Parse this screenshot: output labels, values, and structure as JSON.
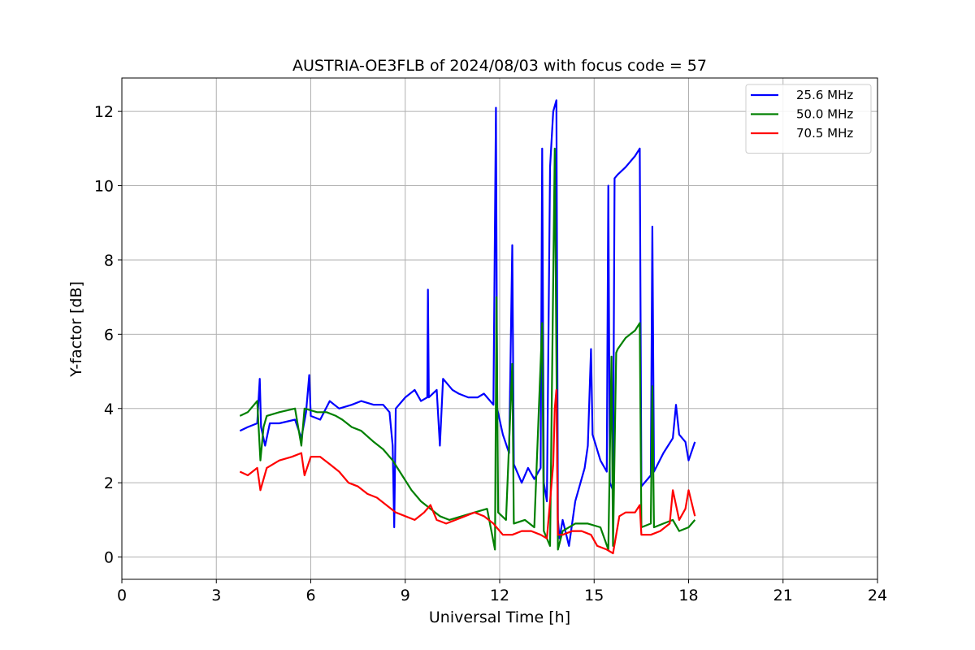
{
  "chart_data": {
    "type": "line",
    "title": "AUSTRIA-OE3FLB of 2024/08/03 with focus code = 57",
    "xlabel": "Universal Time [h]",
    "ylabel": "Y-factor [dB]",
    "xlim": [
      0,
      24
    ],
    "ylim": [
      -0.6,
      12.9
    ],
    "xticks": [
      0,
      3,
      6,
      9,
      12,
      15,
      18,
      21,
      24
    ],
    "yticks": [
      0,
      2,
      4,
      6,
      8,
      10,
      12
    ],
    "xtick_labels": [
      "0",
      "3",
      "6",
      "9",
      "12",
      "15",
      "18",
      "21",
      "24"
    ],
    "ytick_labels": [
      "0",
      "2",
      "4",
      "6",
      "8",
      "10",
      "12"
    ],
    "grid": true,
    "legend_position": "top-right",
    "series": [
      {
        "name": "25.6 MHz",
        "color": "#0000ff",
        "points": [
          [
            3.75,
            3.4
          ],
          [
            4.0,
            3.5
          ],
          [
            4.3,
            3.6
          ],
          [
            4.38,
            4.8
          ],
          [
            4.42,
            3.5
          ],
          [
            4.55,
            3.0
          ],
          [
            4.7,
            3.6
          ],
          [
            5.0,
            3.6
          ],
          [
            5.5,
            3.7
          ],
          [
            5.7,
            3.2
          ],
          [
            5.85,
            3.9
          ],
          [
            5.95,
            4.9
          ],
          [
            6.0,
            3.8
          ],
          [
            6.3,
            3.7
          ],
          [
            6.6,
            4.2
          ],
          [
            6.9,
            4.0
          ],
          [
            7.3,
            4.1
          ],
          [
            7.6,
            4.2
          ],
          [
            8.0,
            4.1
          ],
          [
            8.3,
            4.1
          ],
          [
            8.5,
            3.9
          ],
          [
            8.6,
            3.0
          ],
          [
            8.65,
            0.8
          ],
          [
            8.7,
            4.0
          ],
          [
            9.0,
            4.3
          ],
          [
            9.3,
            4.5
          ],
          [
            9.5,
            4.2
          ],
          [
            9.7,
            4.3
          ],
          [
            9.72,
            7.2
          ],
          [
            9.75,
            4.3
          ],
          [
            10.0,
            4.5
          ],
          [
            10.1,
            3.0
          ],
          [
            10.2,
            4.8
          ],
          [
            10.5,
            4.5
          ],
          [
            10.7,
            4.4
          ],
          [
            11.0,
            4.3
          ],
          [
            11.3,
            4.3
          ],
          [
            11.5,
            4.4
          ],
          [
            11.8,
            4.1
          ],
          [
            11.88,
            12.1
          ],
          [
            11.92,
            4.0
          ],
          [
            12.1,
            3.3
          ],
          [
            12.3,
            2.8
          ],
          [
            12.4,
            8.4
          ],
          [
            12.45,
            2.5
          ],
          [
            12.7,
            2.0
          ],
          [
            12.9,
            2.4
          ],
          [
            13.1,
            2.1
          ],
          [
            13.3,
            2.4
          ],
          [
            13.35,
            11.0
          ],
          [
            13.4,
            2.0
          ],
          [
            13.5,
            1.5
          ],
          [
            13.6,
            10.5
          ],
          [
            13.7,
            12.0
          ],
          [
            13.8,
            12.3
          ],
          [
            13.85,
            1.0
          ],
          [
            13.9,
            0.5
          ],
          [
            14.0,
            1.0
          ],
          [
            14.2,
            0.3
          ],
          [
            14.4,
            1.5
          ],
          [
            14.7,
            2.4
          ],
          [
            14.8,
            3.0
          ],
          [
            14.9,
            5.6
          ],
          [
            14.95,
            3.3
          ],
          [
            15.2,
            2.6
          ],
          [
            15.4,
            2.3
          ],
          [
            15.45,
            10.0
          ],
          [
            15.5,
            2.0
          ],
          [
            15.6,
            1.8
          ],
          [
            15.65,
            10.2
          ],
          [
            15.75,
            10.3
          ],
          [
            16.0,
            10.5
          ],
          [
            16.3,
            10.8
          ],
          [
            16.45,
            11.0
          ],
          [
            16.5,
            1.9
          ],
          [
            16.8,
            2.2
          ],
          [
            16.85,
            8.9
          ],
          [
            16.9,
            2.3
          ],
          [
            17.2,
            2.8
          ],
          [
            17.5,
            3.2
          ],
          [
            17.6,
            4.1
          ],
          [
            17.7,
            3.3
          ],
          [
            17.9,
            3.1
          ],
          [
            18.0,
            2.6
          ],
          [
            18.2,
            3.1
          ]
        ]
      },
      {
        "name": "50.0 MHz",
        "color": "#008000",
        "points": [
          [
            3.75,
            3.8
          ],
          [
            4.0,
            3.9
          ],
          [
            4.3,
            4.2
          ],
          [
            4.4,
            2.6
          ],
          [
            4.5,
            3.5
          ],
          [
            4.6,
            3.8
          ],
          [
            5.0,
            3.9
          ],
          [
            5.5,
            4.0
          ],
          [
            5.7,
            3.0
          ],
          [
            5.8,
            4.0
          ],
          [
            6.2,
            3.9
          ],
          [
            6.5,
            3.9
          ],
          [
            6.8,
            3.8
          ],
          [
            7.0,
            3.7
          ],
          [
            7.3,
            3.5
          ],
          [
            7.6,
            3.4
          ],
          [
            8.0,
            3.1
          ],
          [
            8.3,
            2.9
          ],
          [
            8.6,
            2.6
          ],
          [
            8.9,
            2.2
          ],
          [
            9.2,
            1.8
          ],
          [
            9.5,
            1.5
          ],
          [
            9.8,
            1.3
          ],
          [
            10.1,
            1.1
          ],
          [
            10.4,
            1.0
          ],
          [
            10.8,
            1.1
          ],
          [
            11.2,
            1.2
          ],
          [
            11.6,
            1.3
          ],
          [
            11.85,
            0.2
          ],
          [
            11.9,
            7.0
          ],
          [
            11.95,
            1.2
          ],
          [
            12.2,
            1.0
          ],
          [
            12.4,
            5.2
          ],
          [
            12.45,
            0.9
          ],
          [
            12.8,
            1.0
          ],
          [
            13.1,
            0.8
          ],
          [
            13.35,
            6.3
          ],
          [
            13.4,
            0.7
          ],
          [
            13.6,
            0.3
          ],
          [
            13.75,
            11.0
          ],
          [
            13.85,
            0.2
          ],
          [
            14.0,
            0.7
          ],
          [
            14.4,
            0.9
          ],
          [
            14.8,
            0.9
          ],
          [
            15.2,
            0.8
          ],
          [
            15.45,
            0.2
          ],
          [
            15.55,
            5.4
          ],
          [
            15.6,
            0.3
          ],
          [
            15.7,
            5.5
          ],
          [
            15.75,
            5.6
          ],
          [
            16.0,
            5.9
          ],
          [
            16.3,
            6.1
          ],
          [
            16.45,
            6.3
          ],
          [
            16.5,
            0.8
          ],
          [
            16.8,
            0.9
          ],
          [
            16.85,
            4.6
          ],
          [
            16.9,
            0.8
          ],
          [
            17.2,
            0.9
          ],
          [
            17.5,
            1.0
          ],
          [
            17.7,
            0.7
          ],
          [
            18.0,
            0.8
          ],
          [
            18.2,
            1.0
          ]
        ]
      },
      {
        "name": "70.5 MHz",
        "color": "#ff0000",
        "points": [
          [
            3.75,
            2.3
          ],
          [
            4.0,
            2.2
          ],
          [
            4.3,
            2.4
          ],
          [
            4.4,
            1.8
          ],
          [
            4.6,
            2.4
          ],
          [
            5.0,
            2.6
          ],
          [
            5.4,
            2.7
          ],
          [
            5.7,
            2.8
          ],
          [
            5.8,
            2.2
          ],
          [
            6.0,
            2.7
          ],
          [
            6.3,
            2.7
          ],
          [
            6.6,
            2.5
          ],
          [
            6.9,
            2.3
          ],
          [
            7.2,
            2.0
          ],
          [
            7.5,
            1.9
          ],
          [
            7.8,
            1.7
          ],
          [
            8.1,
            1.6
          ],
          [
            8.4,
            1.4
          ],
          [
            8.7,
            1.2
          ],
          [
            9.0,
            1.1
          ],
          [
            9.3,
            1.0
          ],
          [
            9.6,
            1.2
          ],
          [
            9.8,
            1.4
          ],
          [
            10.0,
            1.0
          ],
          [
            10.3,
            0.9
          ],
          [
            10.6,
            1.0
          ],
          [
            10.9,
            1.1
          ],
          [
            11.2,
            1.2
          ],
          [
            11.5,
            1.1
          ],
          [
            11.8,
            0.9
          ],
          [
            12.1,
            0.6
          ],
          [
            12.4,
            0.6
          ],
          [
            12.7,
            0.7
          ],
          [
            13.0,
            0.7
          ],
          [
            13.3,
            0.6
          ],
          [
            13.5,
            0.5
          ],
          [
            13.7,
            2.5
          ],
          [
            13.75,
            4.0
          ],
          [
            13.8,
            4.5
          ],
          [
            13.85,
            0.6
          ],
          [
            14.0,
            0.6
          ],
          [
            14.3,
            0.7
          ],
          [
            14.6,
            0.7
          ],
          [
            14.9,
            0.6
          ],
          [
            15.1,
            0.3
          ],
          [
            15.4,
            0.2
          ],
          [
            15.6,
            0.1
          ],
          [
            15.8,
            1.1
          ],
          [
            16.0,
            1.2
          ],
          [
            16.3,
            1.2
          ],
          [
            16.45,
            1.4
          ],
          [
            16.5,
            0.6
          ],
          [
            16.8,
            0.6
          ],
          [
            17.1,
            0.7
          ],
          [
            17.4,
            0.9
          ],
          [
            17.5,
            1.8
          ],
          [
            17.7,
            1.0
          ],
          [
            17.9,
            1.3
          ],
          [
            18.0,
            1.8
          ],
          [
            18.2,
            1.1
          ]
        ]
      }
    ]
  }
}
